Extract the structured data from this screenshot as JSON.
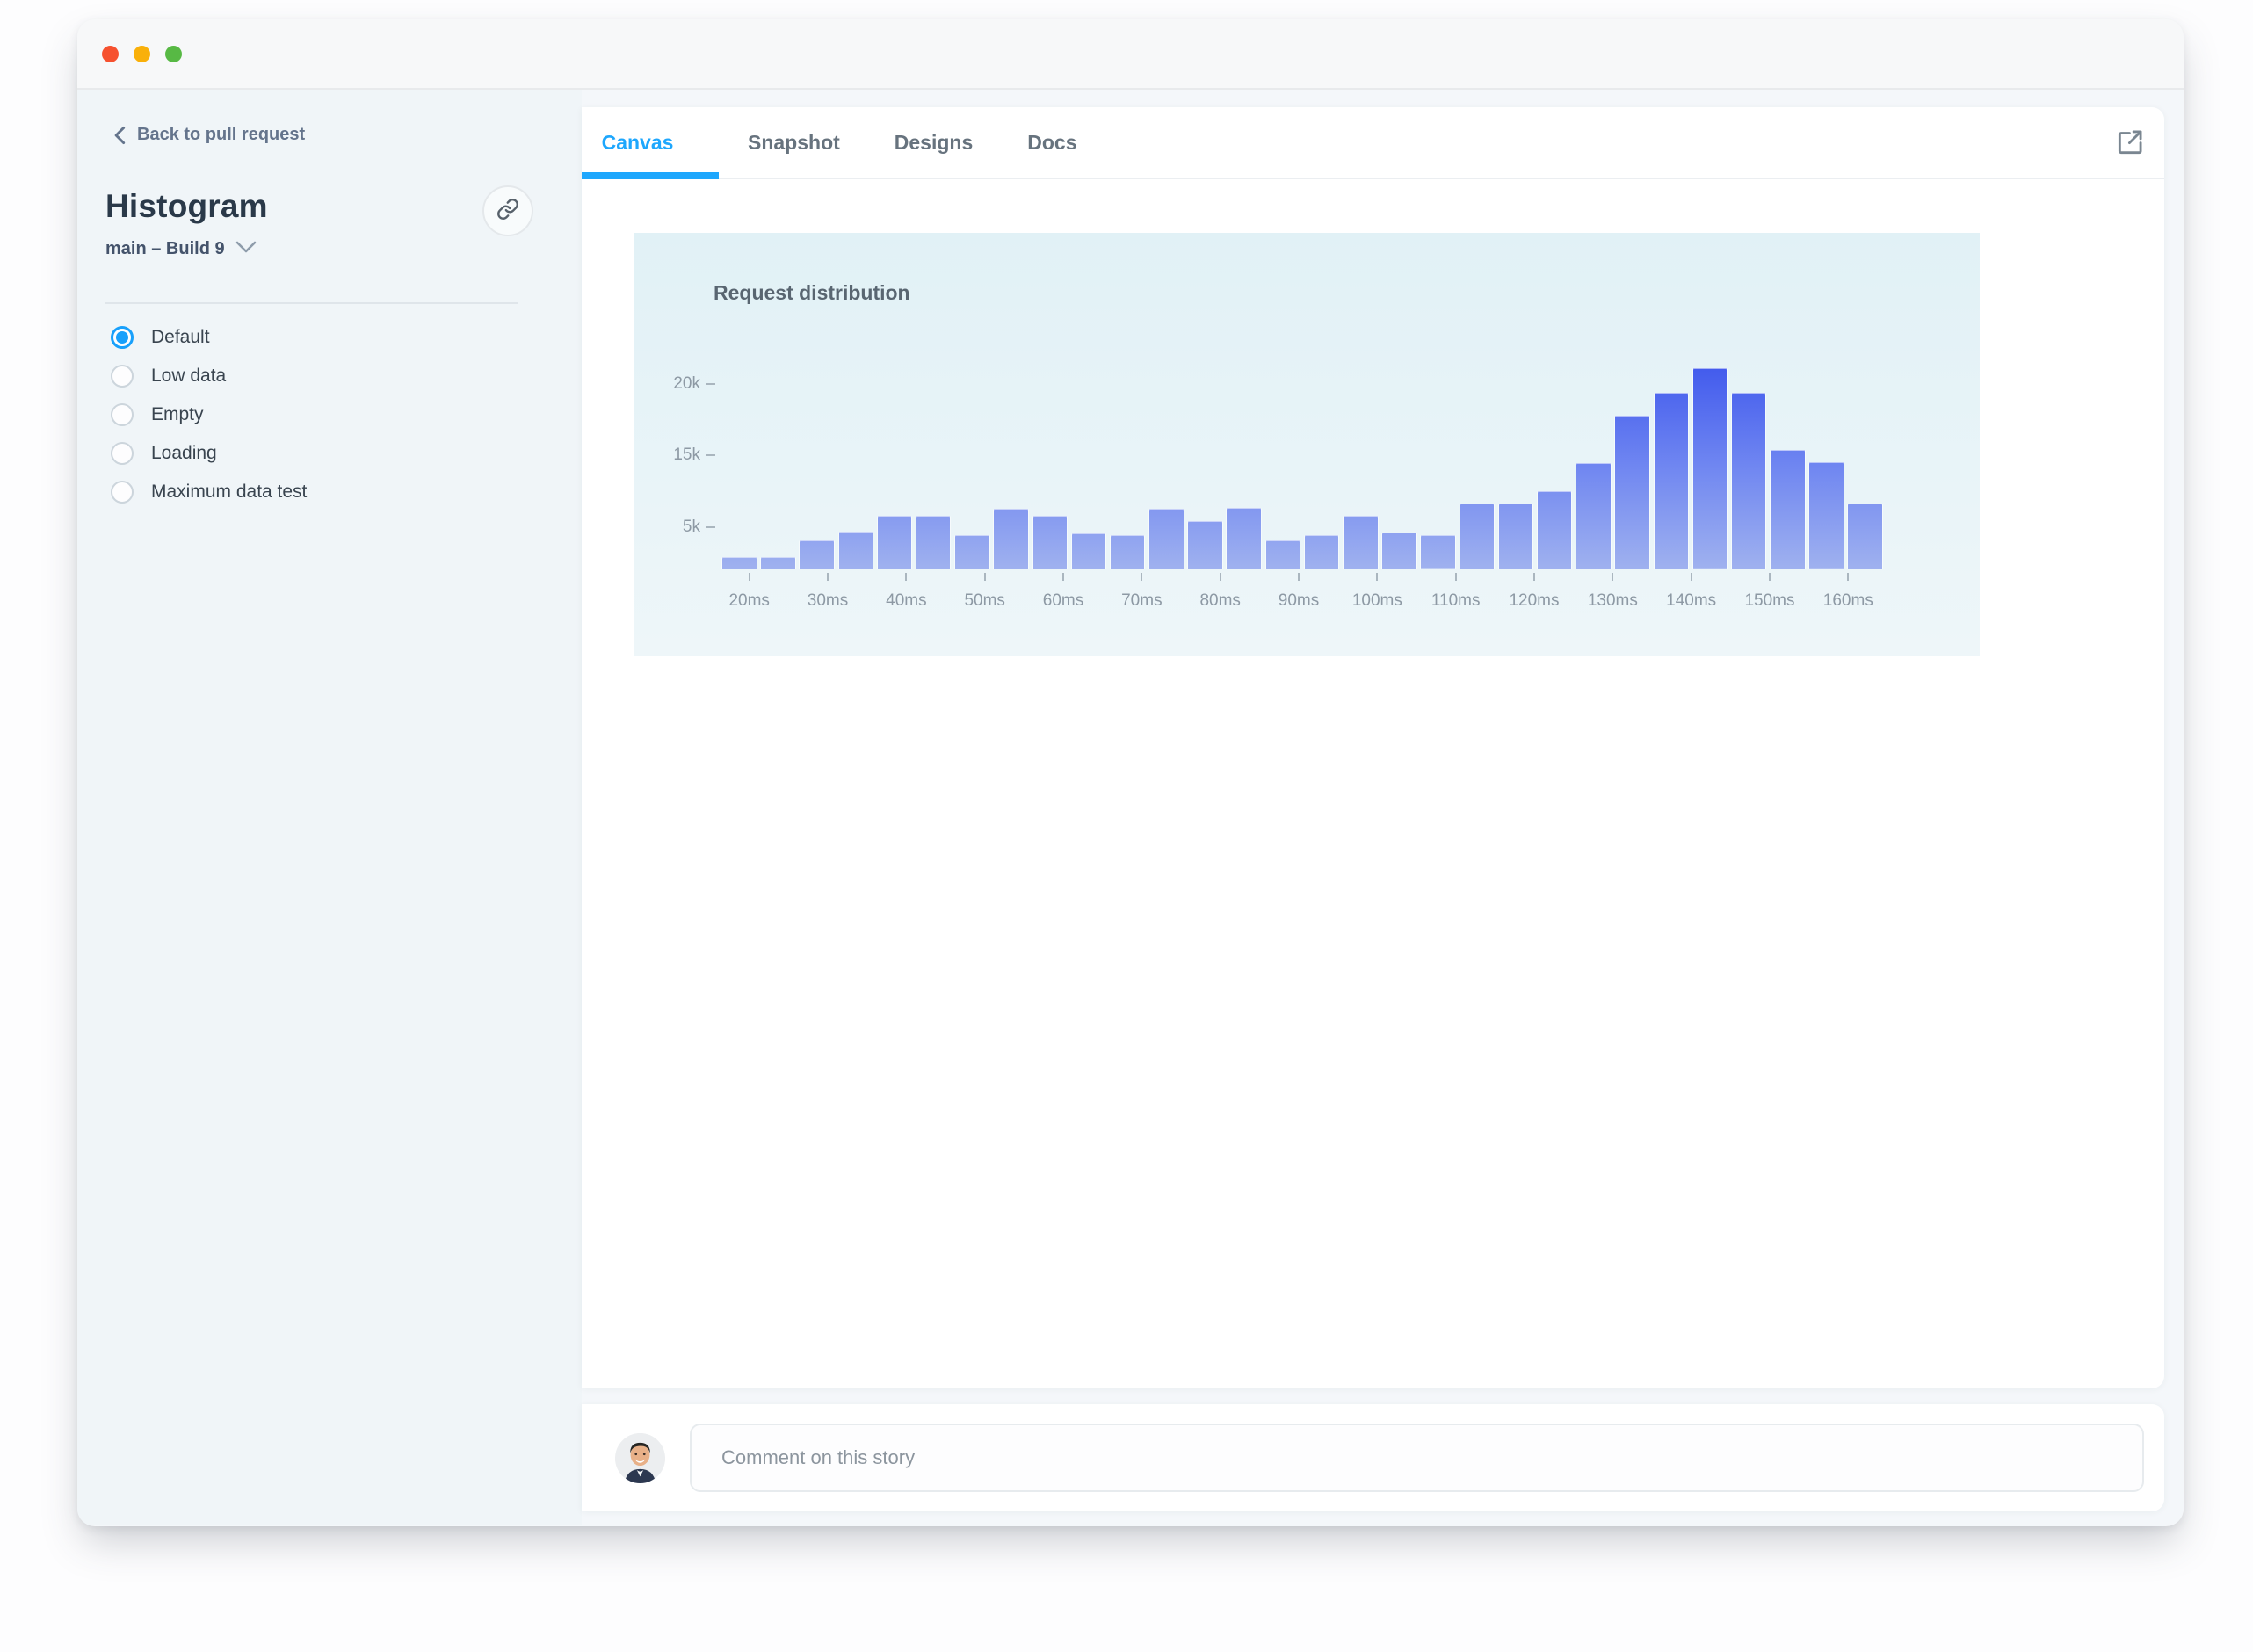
{
  "window": {
    "traffic_lights": [
      "close",
      "minimize",
      "zoom"
    ]
  },
  "sidebar": {
    "back_link_label": "Back to pull request",
    "story_title": "Histogram",
    "build_label": "main – Build 9",
    "stories": [
      {
        "label": "Default",
        "selected": true
      },
      {
        "label": "Low data",
        "selected": false
      },
      {
        "label": "Empty",
        "selected": false
      },
      {
        "label": "Loading",
        "selected": false
      },
      {
        "label": "Maximum data test",
        "selected": false
      }
    ]
  },
  "tabs": [
    {
      "label": "Canvas",
      "active": true
    },
    {
      "label": "Snapshot",
      "active": false
    },
    {
      "label": "Designs",
      "active": false
    },
    {
      "label": "Docs",
      "active": false
    }
  ],
  "icons": {
    "back": "chevron-left-icon",
    "build": "chevron-down-icon",
    "permalink": "link-icon",
    "open": "external-link-icon"
  },
  "comment": {
    "placeholder": "Comment on this story"
  },
  "chart_data": {
    "type": "bar",
    "title": "Request distribution",
    "x_tick_labels": [
      "20ms",
      "30ms",
      "40ms",
      "50ms",
      "60ms",
      "70ms",
      "80ms",
      "90ms",
      "100ms",
      "110ms",
      "120ms",
      "130ms",
      "140ms",
      "150ms",
      "160ms"
    ],
    "y_tick_labels": [
      "5k",
      "15k",
      "20k"
    ],
    "values_thousands": [
      1.4,
      1.4,
      3.4,
      4.5,
      6.6,
      6.6,
      4.1,
      7.6,
      6.6,
      4.3,
      4.1,
      7.6,
      5.9,
      7.7,
      3.4,
      4.1,
      6.6,
      4.4,
      4.0,
      8.3,
      8.3,
      10.0,
      13.9,
      17.8,
      19.4,
      21.1,
      19.4,
      15.4,
      14.0,
      8.3
    ],
    "x_unit": "ms",
    "grid": false,
    "legend": false,
    "colors": {
      "bar_top": "#3c55ec",
      "bar_bottom": "#9fb1ef",
      "axis_text": "#8d99a4",
      "panel_top": "#e1f1f6",
      "panel_bottom": "#eef6f9"
    }
  },
  "accent": {
    "active_blue": "#1ea7fd",
    "radio_blue": "#18a0fb"
  }
}
